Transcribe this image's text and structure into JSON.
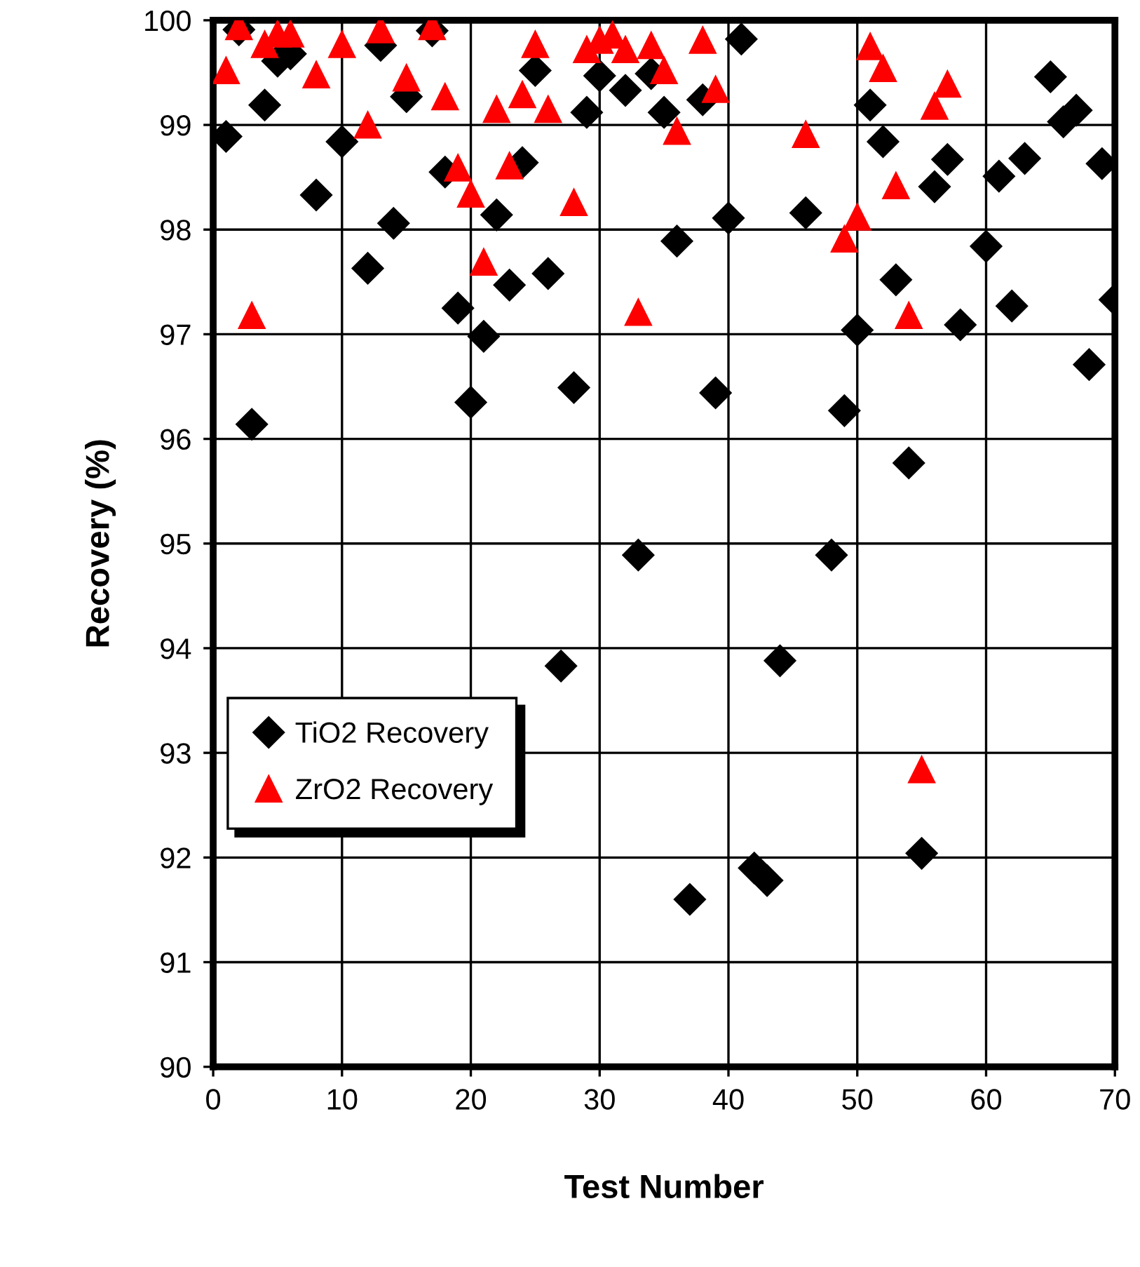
{
  "chart_data": {
    "type": "scatter",
    "xlabel": "Test Number",
    "ylabel": "Recovery (%)",
    "xlim": [
      0,
      70
    ],
    "ylim": [
      90,
      100
    ],
    "xticks": [
      0,
      10,
      20,
      30,
      40,
      50,
      60,
      70
    ],
    "yticks": [
      90,
      91,
      92,
      93,
      94,
      95,
      96,
      97,
      98,
      99,
      100
    ],
    "grid": true,
    "legend": "left",
    "series": [
      {
        "name": "TiO2 Recovery",
        "color": "#000000",
        "marker": "diamond",
        "x": [
          1,
          2,
          3,
          4,
          5,
          6,
          8,
          10,
          12,
          13,
          14,
          15,
          17,
          18,
          19,
          20,
          21,
          22,
          23,
          24,
          25,
          26,
          27,
          28,
          29,
          30,
          32,
          33,
          34,
          35,
          36,
          37,
          38,
          39,
          40,
          41,
          42,
          43,
          44,
          46,
          48,
          49,
          50,
          51,
          52,
          53,
          54,
          55,
          56,
          57,
          58,
          60,
          61,
          62,
          63,
          65,
          66,
          67,
          68,
          69,
          70
        ],
        "values": [
          98.89,
          99.91,
          96.14,
          99.19,
          99.61,
          99.68,
          98.33,
          98.84,
          97.63,
          99.76,
          98.06,
          99.27,
          99.9,
          98.55,
          97.25,
          96.35,
          96.98,
          98.14,
          97.47,
          98.64,
          99.52,
          97.58,
          93.83,
          96.49,
          99.12,
          99.47,
          99.33,
          94.89,
          99.49,
          99.12,
          97.89,
          91.6,
          99.24,
          96.44,
          98.11,
          99.82,
          91.9,
          91.78,
          93.88,
          98.16,
          94.89,
          96.27,
          97.04,
          99.19,
          98.84,
          97.52,
          95.77,
          92.04,
          98.41,
          98.67,
          97.09,
          97.84,
          98.51,
          97.27,
          98.68,
          99.46,
          99.03,
          99.14,
          96.71,
          98.63,
          97.33
        ]
      },
      {
        "name": "ZrO2 Recovery",
        "color": "#ff0000",
        "marker": "triangle",
        "x": [
          1,
          2,
          3,
          4,
          5,
          6,
          8,
          10,
          12,
          13,
          15,
          17,
          18,
          19,
          20,
          21,
          22,
          23,
          24,
          25,
          26,
          28,
          29,
          30,
          31,
          32,
          33,
          34,
          35,
          36,
          38,
          39,
          46,
          49,
          50,
          51,
          52,
          53,
          54,
          55,
          56,
          57
        ],
        "values": [
          99.52,
          99.94,
          97.18,
          99.77,
          99.87,
          99.87,
          99.48,
          99.77,
          99.0,
          99.91,
          99.45,
          99.94,
          99.27,
          98.59,
          98.34,
          97.69,
          99.15,
          98.61,
          99.29,
          99.77,
          99.15,
          98.26,
          99.72,
          99.81,
          99.86,
          99.72,
          97.21,
          99.76,
          99.52,
          98.94,
          99.81,
          99.34,
          98.91,
          97.91,
          98.12,
          99.75,
          99.54,
          98.42,
          97.18,
          92.84,
          99.18,
          99.39
        ]
      }
    ]
  }
}
